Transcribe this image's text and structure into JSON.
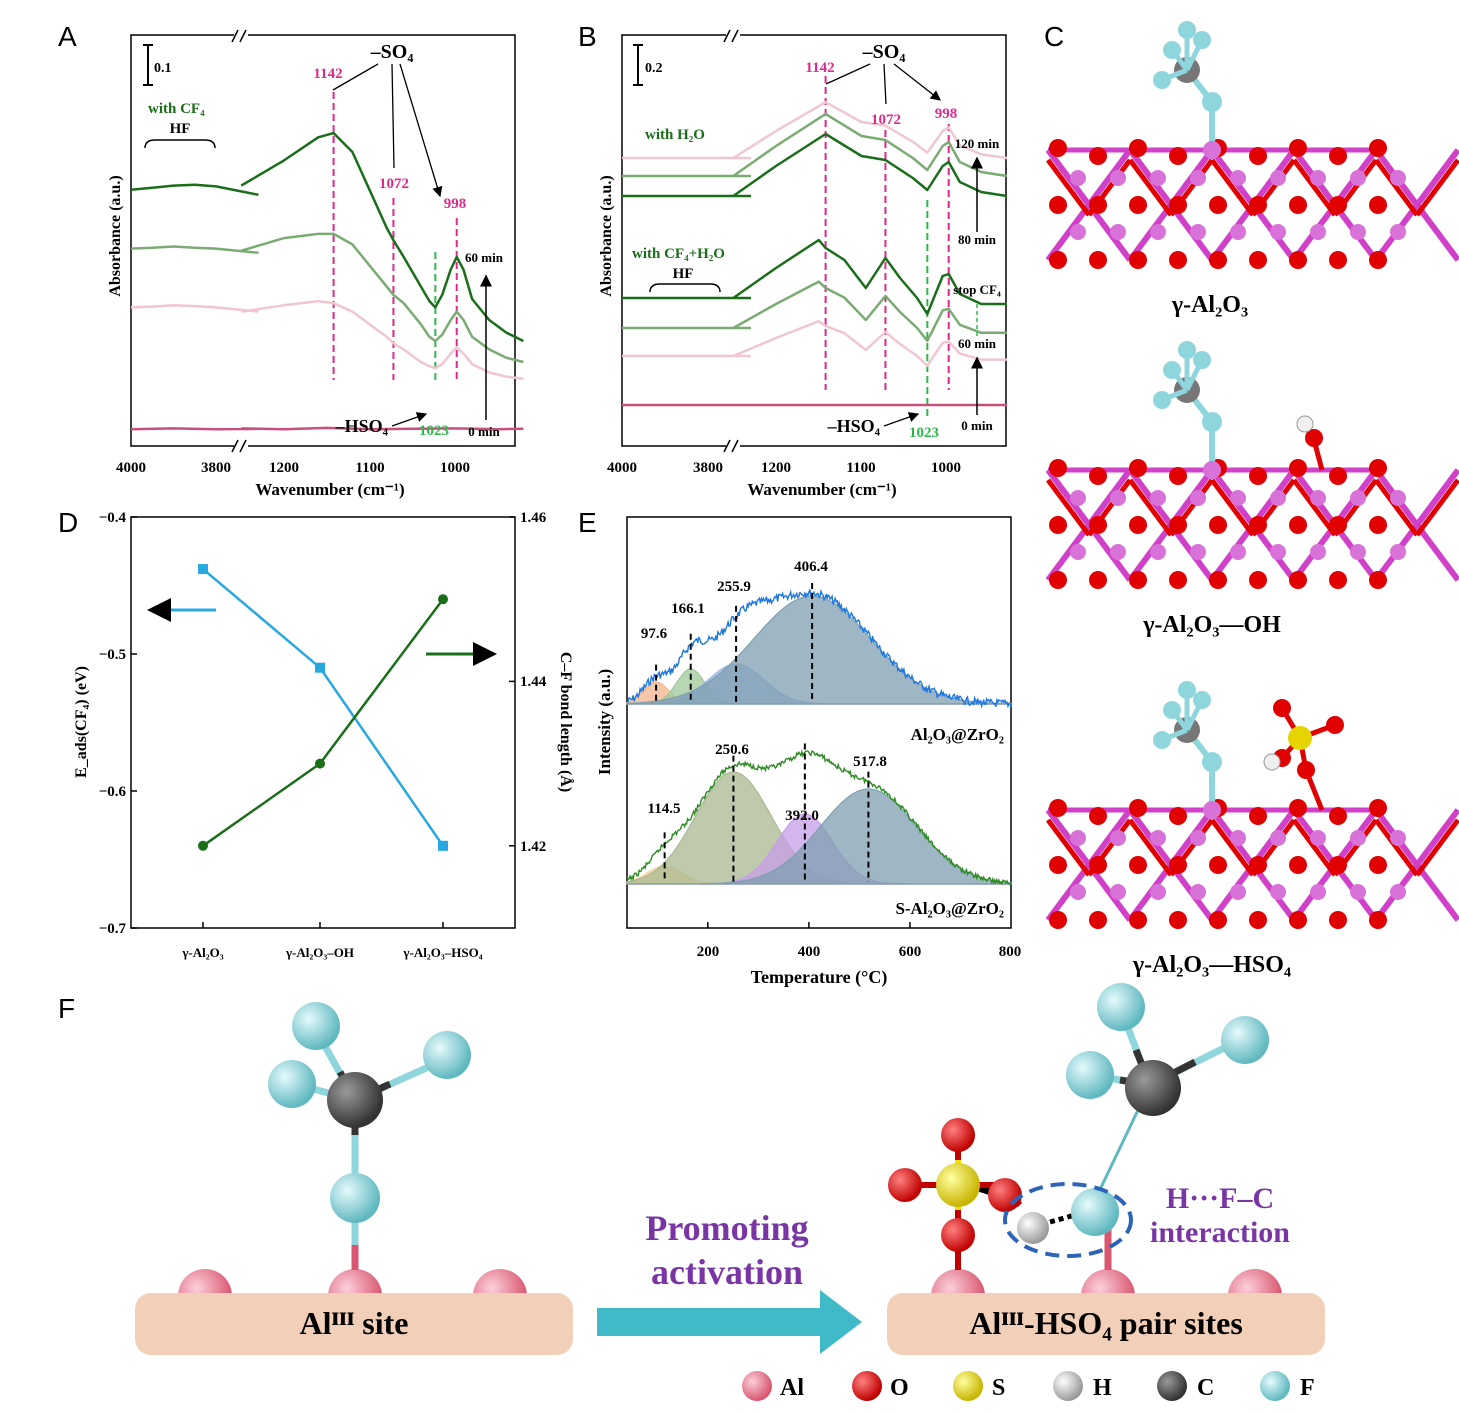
{
  "panels": {
    "A": "A",
    "B": "B",
    "C": "C",
    "D": "D",
    "E": "E",
    "F": "F"
  },
  "colors": {
    "green_dark": "#1a6e1a",
    "green_mid": "#7aab72",
    "pink_light": "#efc6d2",
    "magenta": "#c8507e",
    "marker_pink": "#e0288a",
    "marker_green": "#2db84a",
    "cyan_line": "#28a8e0",
    "arrow_teal": "#3fbac6",
    "purple": "#7a35a5",
    "al": "#e87b94",
    "o": "#e00000",
    "s": "#f2e000",
    "h": "#f0f0f0",
    "c": "#555555",
    "f": "#8fd6dc"
  },
  "chart_data": [
    {
      "panel": "A",
      "type": "line",
      "xlabel": "Wavenumber (cm⁻¹)",
      "ylabel": "Absorbance (a.u.)",
      "xticks": [
        "4000",
        "3800",
        "1200",
        "1100",
        "1000"
      ],
      "scale_bar": "0.1",
      "curve_label": "with CF₄",
      "band_label": "HF",
      "group_label": "–SO₄",
      "hso4_label": "–HSO₄",
      "markers": [
        "1142",
        "1072",
        "998",
        "1023"
      ],
      "time_top": "60 min",
      "time_bottom": "0 min",
      "series": [
        {
          "name": "60 min",
          "x": [
            4000,
            3950,
            3900,
            3850,
            3800,
            3750,
            3700,
            1250,
            1200,
            1160,
            1142,
            1120,
            1100,
            1080,
            1072,
            1060,
            1040,
            1030,
            1023,
            1015,
            1005,
            998,
            990,
            980,
            960,
            940,
            920
          ],
          "y": [
            0.61,
            0.615,
            0.62,
            0.622,
            0.618,
            0.608,
            0.598,
            0.62,
            0.68,
            0.735,
            0.745,
            0.7,
            0.61,
            0.52,
            0.49,
            0.45,
            0.38,
            0.345,
            0.33,
            0.36,
            0.42,
            0.45,
            0.42,
            0.35,
            0.3,
            0.27,
            0.25
          ]
        },
        {
          "name": "",
          "x": [
            4000,
            3950,
            3900,
            3850,
            3800,
            3750,
            3700,
            1250,
            1200,
            1160,
            1142,
            1120,
            1100,
            1080,
            1072,
            1060,
            1040,
            1030,
            1023,
            1015,
            1005,
            998,
            990,
            980,
            960,
            940,
            920
          ],
          "y": [
            0.47,
            0.472,
            0.475,
            0.472,
            0.47,
            0.465,
            0.46,
            0.465,
            0.495,
            0.505,
            0.505,
            0.48,
            0.43,
            0.38,
            0.36,
            0.34,
            0.29,
            0.26,
            0.25,
            0.265,
            0.3,
            0.32,
            0.3,
            0.26,
            0.23,
            0.21,
            0.2
          ]
        },
        {
          "name": "",
          "x": [
            4000,
            3950,
            3900,
            3850,
            3800,
            3750,
            3700,
            1250,
            1200,
            1160,
            1142,
            1120,
            1100,
            1080,
            1072,
            1060,
            1040,
            1030,
            1023,
            1015,
            1005,
            998,
            990,
            980,
            960,
            940,
            920
          ],
          "y": [
            0.33,
            0.332,
            0.335,
            0.333,
            0.33,
            0.325,
            0.32,
            0.32,
            0.335,
            0.345,
            0.34,
            0.32,
            0.29,
            0.26,
            0.245,
            0.23,
            0.2,
            0.19,
            0.185,
            0.195,
            0.22,
            0.235,
            0.22,
            0.195,
            0.175,
            0.165,
            0.16
          ]
        },
        {
          "name": "0 min",
          "x": [
            4000,
            3900,
            3800,
            3700,
            1250,
            1200,
            1150,
            1100,
            1050,
            1000,
            950,
            920
          ],
          "y": [
            0.04,
            0.042,
            0.04,
            0.041,
            0.042,
            0.04,
            0.043,
            0.04,
            0.041,
            0.042,
            0.04,
            0.041
          ]
        }
      ]
    },
    {
      "panel": "B",
      "type": "line",
      "xlabel": "Wavenumber (cm⁻¹)",
      "ylabel": "Absorbance (a.u.)",
      "xticks": [
        "4000",
        "3800",
        "1200",
        "1100",
        "1000"
      ],
      "scale_bar": "0.2",
      "curve_label_top": "with H₂O",
      "curve_label_mid": "with CF₄+H₂O",
      "band_label": "HF",
      "group_label": "–SO₄",
      "hso4_label": "–HSO₄",
      "markers": [
        "1142",
        "1072",
        "998",
        "1023"
      ],
      "times": [
        "120 min",
        "80 min",
        "stop CF₄",
        "60 min",
        "0 min"
      ]
    },
    {
      "panel": "D",
      "type": "line",
      "categories": [
        "γ-Al₂O₃",
        "γ-Al₂O₃–OH",
        "γ-Al₂O₃–HSO₄"
      ],
      "ylabel_left": "E_ads(CF₄) (eV)",
      "ylabel_right": "C–F bond length (Å)",
      "ylim_left": [
        -0.7,
        -0.4
      ],
      "ylim_right": [
        1.41,
        1.46
      ],
      "yticks_left": [
        "−0.4",
        "−0.5",
        "−0.6",
        "−0.7"
      ],
      "yticks_right": [
        "1.46",
        "1.44",
        "1.42"
      ],
      "series": [
        {
          "name": "E_ads",
          "axis": "left",
          "values": [
            -0.438,
            -0.51,
            -0.64
          ]
        },
        {
          "name": "C–F bond length",
          "axis": "right",
          "values": [
            1.42,
            1.43,
            1.45
          ]
        }
      ]
    },
    {
      "panel": "E",
      "type": "area",
      "xlabel": "Temperature (°C)",
      "ylabel": "Intensity (a.u.)",
      "xlim": [
        40,
        800
      ],
      "xticks": [
        "200",
        "400",
        "600",
        "800"
      ],
      "series": [
        {
          "name": "Al₂O₃@ZrO₂",
          "peaks": [
            97.6,
            166.1,
            255.9,
            406.4
          ]
        },
        {
          "name": "S-Al₂O₃@ZrO₂",
          "peaks": [
            114.5,
            250.6,
            392.0,
            517.8
          ]
        }
      ],
      "peak_labels_top": [
        "97.6",
        "166.1",
        "255.9",
        "406.4"
      ],
      "peak_labels_bottom": [
        "114.5",
        "250.6",
        "392.0",
        "517.8"
      ]
    }
  ],
  "structures": {
    "al2o3": "γ-Al₂O₃",
    "al2o3_oh": "γ-Al₂O₃—OH",
    "al2o3_hso4": "γ-Al₂O₃—HSO₄"
  },
  "scheme": {
    "left_site": "Alᴵᴵᴵ site",
    "arrow_line1": "Promoting",
    "arrow_line2": "activation",
    "right_site": "Alᴵᴵᴵ-HSO₄ pair sites",
    "interaction_line1": "H···F–C",
    "interaction_line2": "interaction"
  },
  "legend": [
    "Al",
    "O",
    "S",
    "H",
    "C",
    "F"
  ]
}
